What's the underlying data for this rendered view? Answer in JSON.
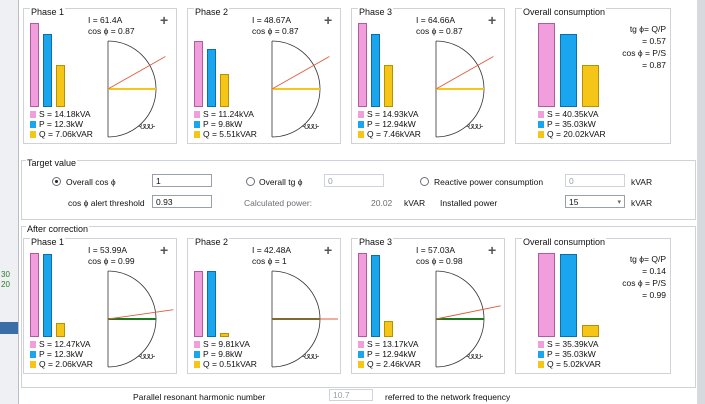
{
  "left_edge": {
    "text1": "30",
    "text2": "20"
  },
  "target": {
    "title": "Target value",
    "opt_cos": "Overall cos ϕ",
    "opt_tg": "Overall tg ϕ",
    "opt_reactive": "Reactive power consumption",
    "cos_value": "1",
    "tg_value": "0",
    "reactive_value": "0",
    "reactive_unit": "kVAR",
    "alert_label": "cos ϕ alert threshold",
    "alert_value": "0.93",
    "calc_label": "Calculated power:",
    "calc_value": "20.02",
    "calc_unit": "kVAR",
    "installed_label": "Installed power",
    "installed_value": "15",
    "installed_unit": "kVAR"
  },
  "before": {
    "panels": [
      {
        "title": "Phase 1",
        "current": "I = 61.4A",
        "cos": "cos ϕ = 0.87",
        "s": "S = 14.18kVA",
        "p": "P = 12.3kW",
        "q": "Q = 7.06kVAR",
        "bars": [
          1.0,
          0.87,
          0.5
        ]
      },
      {
        "title": "Phase 2",
        "current": "I = 48.67A",
        "cos": "cos ϕ = 0.87",
        "s": "S = 11.24kVA",
        "p": "P = 9.8kW",
        "q": "Q = 5.51kVAR",
        "bars": [
          0.79,
          0.69,
          0.39
        ]
      },
      {
        "title": "Phase 3",
        "current": "I = 64.66A",
        "cos": "cos ϕ = 0.87",
        "s": "S = 14.93kVA",
        "p": "P = 12.94kW",
        "q": "Q = 7.46kVAR",
        "bars": [
          1.0,
          0.87,
          0.5
        ]
      }
    ],
    "overall": {
      "title": "Overall consumption",
      "tg_label": "tg ϕ= Q/P",
      "tg_value": "= 0.57",
      "cos_label": "cos ϕ = P/S",
      "cos_value": "= 0.87",
      "s": "S = 40.35kVA",
      "p": "P = 35.03kW",
      "q": "Q = 20.02kVAR",
      "bars": [
        1.0,
        0.87,
        0.5
      ]
    }
  },
  "after": {
    "title": "After correction",
    "panels": [
      {
        "title": "Phase 1",
        "current": "I = 53.99A",
        "cos": "cos ϕ = 0.99",
        "s": "S = 12.47kVA",
        "p": "P = 12.3kW",
        "q": "Q = 2.06kVAR",
        "bars": [
          1.0,
          0.99,
          0.17
        ]
      },
      {
        "title": "Phase 2",
        "current": "I = 42.48A",
        "cos": "cos ϕ = 1",
        "s": "S = 9.81kVA",
        "p": "P = 9.8kW",
        "q": "Q = 0.51kVAR",
        "bars": [
          0.79,
          0.79,
          0.05
        ]
      },
      {
        "title": "Phase 3",
        "current": "I = 57.03A",
        "cos": "cos ϕ = 0.98",
        "s": "S = 13.17kVA",
        "p": "P = 12.94kW",
        "q": "Q = 2.46kVAR",
        "bars": [
          1.0,
          0.98,
          0.19
        ]
      }
    ],
    "overall": {
      "title": "Overall consumption",
      "tg_label": "tg ϕ= Q/P",
      "tg_value": "= 0.14",
      "cos_label": "cos ϕ = P/S",
      "cos_value": "= 0.99",
      "s": "S = 35.39kVA",
      "p": "P = 35.03kW",
      "q": "Q = 5.02kVAR",
      "bars": [
        1.0,
        0.99,
        0.14
      ]
    }
  },
  "footer": {
    "harmonic_label": "Parallel resonant harmonic number",
    "harmonic_value": "10.7",
    "harmonic_note": "referred to the network frequency"
  },
  "colors": {
    "s": "#f19edc",
    "p": "#1aa6ee",
    "q": "#f5c518",
    "before_line": "#e05a3a",
    "after_line": "#1d7a1d"
  }
}
